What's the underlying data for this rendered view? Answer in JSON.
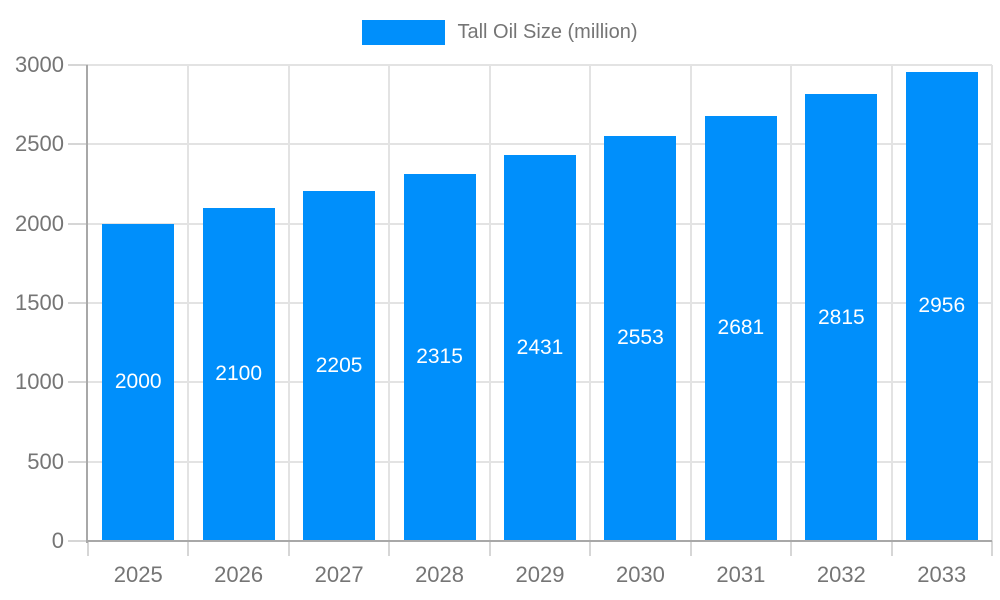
{
  "legend": {
    "label": "Tall Oil Size (million)",
    "swatch_color": "#008FFB"
  },
  "chart_data": {
    "type": "bar",
    "title": "Tall Oil Size (million)",
    "series_name": "Tall Oil Size (million)",
    "categories": [
      "2025",
      "2026",
      "2027",
      "2028",
      "2029",
      "2030",
      "2031",
      "2032",
      "2033"
    ],
    "values": [
      2000,
      2100,
      2205,
      2315,
      2431,
      2553,
      2681,
      2815,
      2956
    ],
    "data_labels": true,
    "xlabel": "",
    "ylabel": "",
    "ylim": [
      0,
      3000
    ],
    "yticks": [
      0,
      500,
      1000,
      1500,
      2000,
      2500,
      3000
    ],
    "grid": true,
    "legend_position": "top",
    "colors": {
      "bar": "#008FFB",
      "bar_label": "#FFFFFF",
      "axis_text": "#757575",
      "grid_line": "#E3E3E3",
      "axis_line": "#A8A8A8",
      "tick_line": "#D6D6D6",
      "background": "#FFFFFF"
    }
  }
}
